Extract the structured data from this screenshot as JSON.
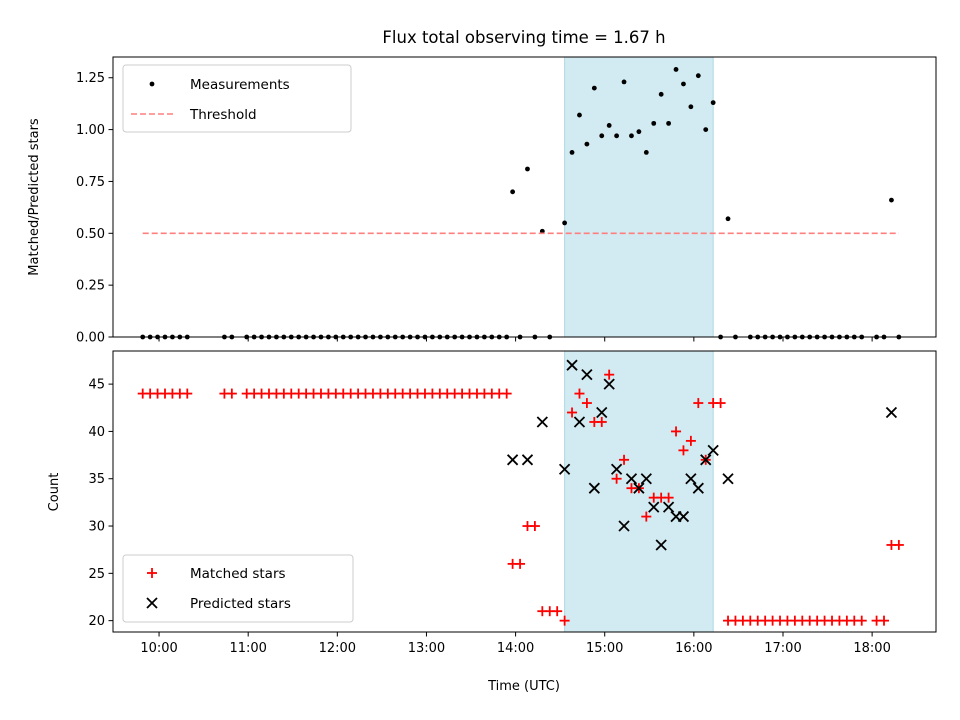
{
  "title": "Flux total observing time = 1.67 h",
  "colors": {
    "measurement": "#000000",
    "threshold": "#ff7f7f",
    "matched": "#ff0000",
    "predicted": "#000000",
    "span": "#add8e6"
  },
  "chart_data": [
    {
      "type": "scatter",
      "panel": "top",
      "ylabel": "Matched/Predicted stars",
      "ylim": [
        0,
        1.35
      ],
      "xlim": [
        "09:29",
        "18:43"
      ],
      "y_ticks": [
        0.0,
        0.25,
        0.5,
        0.75,
        1.0,
        1.25
      ],
      "y_tick_labels": [
        "0.00",
        "0.25",
        "0.50",
        "0.75",
        "1.00",
        "1.25"
      ],
      "x_ticks": [
        "10:00",
        "11:00",
        "12:00",
        "13:00",
        "14:00",
        "15:00",
        "16:00",
        "17:00",
        "18:00"
      ],
      "x_tick_labels": [
        "",
        "",
        "",
        "",
        "",
        "",
        "",
        "",
        ""
      ],
      "highlight_span": [
        "14:33",
        "16:13"
      ],
      "legend": {
        "location": "upper-left",
        "entries": [
          "Measurements",
          "Threshold"
        ]
      },
      "series": [
        {
          "name": "Measurements",
          "marker": "dot",
          "points": [
            [
              "09:49",
              0
            ],
            [
              "09:54",
              0
            ],
            [
              "09:59",
              0
            ],
            [
              "10:04",
              0
            ],
            [
              "10:09",
              0
            ],
            [
              "10:14",
              0
            ],
            [
              "10:19",
              0
            ],
            [
              "10:44",
              0
            ],
            [
              "10:49",
              0
            ],
            [
              "10:59",
              0
            ],
            [
              "11:04",
              0
            ],
            [
              "11:09",
              0
            ],
            [
              "11:14",
              0
            ],
            [
              "11:19",
              0
            ],
            [
              "11:24",
              0
            ],
            [
              "11:29",
              0
            ],
            [
              "11:34",
              0
            ],
            [
              "11:39",
              0
            ],
            [
              "11:44",
              0
            ],
            [
              "11:49",
              0
            ],
            [
              "11:54",
              0
            ],
            [
              "11:59",
              0
            ],
            [
              "12:04",
              0
            ],
            [
              "12:09",
              0
            ],
            [
              "12:14",
              0
            ],
            [
              "12:19",
              0
            ],
            [
              "12:24",
              0
            ],
            [
              "12:29",
              0
            ],
            [
              "12:34",
              0
            ],
            [
              "12:39",
              0
            ],
            [
              "12:44",
              0
            ],
            [
              "12:49",
              0
            ],
            [
              "12:54",
              0
            ],
            [
              "12:59",
              0
            ],
            [
              "13:04",
              0
            ],
            [
              "13:09",
              0
            ],
            [
              "13:14",
              0
            ],
            [
              "13:19",
              0
            ],
            [
              "13:24",
              0
            ],
            [
              "13:29",
              0
            ],
            [
              "13:34",
              0
            ],
            [
              "13:39",
              0
            ],
            [
              "13:44",
              0
            ],
            [
              "13:49",
              0
            ],
            [
              "13:54",
              0
            ],
            [
              "13:58",
              0.7
            ],
            [
              "14:03",
              0
            ],
            [
              "14:08",
              0.81
            ],
            [
              "14:13",
              0
            ],
            [
              "14:18",
              0.51
            ],
            [
              "14:23",
              0
            ],
            [
              "14:33",
              0.55
            ],
            [
              "14:38",
              0.89
            ],
            [
              "14:43",
              1.07
            ],
            [
              "14:48",
              0.93
            ],
            [
              "14:53",
              1.2
            ],
            [
              "14:58",
              0.97
            ],
            [
              "15:03",
              1.02
            ],
            [
              "15:08",
              0.97
            ],
            [
              "15:13",
              1.23
            ],
            [
              "15:18",
              0.97
            ],
            [
              "15:23",
              0.99
            ],
            [
              "15:28",
              0.89
            ],
            [
              "15:33",
              1.03
            ],
            [
              "15:38",
              1.17
            ],
            [
              "15:43",
              1.03
            ],
            [
              "15:48",
              1.29
            ],
            [
              "15:53",
              1.22
            ],
            [
              "15:58",
              1.11
            ],
            [
              "16:03",
              1.26
            ],
            [
              "16:08",
              1.0
            ],
            [
              "16:13",
              1.13
            ],
            [
              "16:18",
              0
            ],
            [
              "16:23",
              0.57
            ],
            [
              "16:28",
              0
            ],
            [
              "16:38",
              0
            ],
            [
              "16:43",
              0
            ],
            [
              "16:48",
              0
            ],
            [
              "16:53",
              0
            ],
            [
              "16:58",
              0
            ],
            [
              "17:03",
              0
            ],
            [
              "17:08",
              0
            ],
            [
              "17:13",
              0
            ],
            [
              "17:18",
              0
            ],
            [
              "17:23",
              0
            ],
            [
              "17:28",
              0
            ],
            [
              "17:33",
              0
            ],
            [
              "17:38",
              0
            ],
            [
              "17:43",
              0
            ],
            [
              "17:48",
              0
            ],
            [
              "17:53",
              0
            ],
            [
              "18:03",
              0
            ],
            [
              "18:08",
              0
            ],
            [
              "18:13",
              0.66
            ],
            [
              "18:18",
              0
            ]
          ]
        },
        {
          "name": "Threshold",
          "style": "dashed-line",
          "points": [
            [
              "09:49",
              0.5
            ],
            [
              "18:18",
              0.5
            ]
          ]
        }
      ]
    },
    {
      "type": "scatter",
      "panel": "bottom",
      "xlabel": "Time (UTC)",
      "ylabel": "Count",
      "ylim": [
        18.8,
        48.5
      ],
      "xlim": [
        "09:29",
        "18:43"
      ],
      "y_ticks": [
        20,
        25,
        30,
        35,
        40,
        45
      ],
      "y_tick_labels": [
        "20",
        "25",
        "30",
        "35",
        "40",
        "45"
      ],
      "x_ticks": [
        "10:00",
        "11:00",
        "12:00",
        "13:00",
        "14:00",
        "15:00",
        "16:00",
        "17:00",
        "18:00"
      ],
      "x_tick_labels": [
        "10:00",
        "11:00",
        "12:00",
        "13:00",
        "14:00",
        "15:00",
        "16:00",
        "17:00",
        "18:00"
      ],
      "highlight_span": [
        "14:33",
        "16:13"
      ],
      "legend": {
        "location": "lower-left",
        "entries": [
          "Matched stars",
          "Predicted stars"
        ]
      },
      "series": [
        {
          "name": "Matched stars",
          "marker": "plus",
          "points": [
            [
              "09:49",
              44
            ],
            [
              "09:54",
              44
            ],
            [
              "09:59",
              44
            ],
            [
              "10:04",
              44
            ],
            [
              "10:09",
              44
            ],
            [
              "10:14",
              44
            ],
            [
              "10:19",
              44
            ],
            [
              "10:44",
              44
            ],
            [
              "10:49",
              44
            ],
            [
              "10:59",
              44
            ],
            [
              "11:04",
              44
            ],
            [
              "11:09",
              44
            ],
            [
              "11:14",
              44
            ],
            [
              "11:19",
              44
            ],
            [
              "11:24",
              44
            ],
            [
              "11:29",
              44
            ],
            [
              "11:34",
              44
            ],
            [
              "11:39",
              44
            ],
            [
              "11:44",
              44
            ],
            [
              "11:49",
              44
            ],
            [
              "11:54",
              44
            ],
            [
              "11:59",
              44
            ],
            [
              "12:04",
              44
            ],
            [
              "12:09",
              44
            ],
            [
              "12:14",
              44
            ],
            [
              "12:19",
              44
            ],
            [
              "12:24",
              44
            ],
            [
              "12:29",
              44
            ],
            [
              "12:34",
              44
            ],
            [
              "12:39",
              44
            ],
            [
              "12:44",
              44
            ],
            [
              "12:49",
              44
            ],
            [
              "12:54",
              44
            ],
            [
              "12:59",
              44
            ],
            [
              "13:04",
              44
            ],
            [
              "13:09",
              44
            ],
            [
              "13:14",
              44
            ],
            [
              "13:19",
              44
            ],
            [
              "13:24",
              44
            ],
            [
              "13:29",
              44
            ],
            [
              "13:34",
              44
            ],
            [
              "13:39",
              44
            ],
            [
              "13:44",
              44
            ],
            [
              "13:49",
              44
            ],
            [
              "13:54",
              44
            ],
            [
              "13:58",
              26
            ],
            [
              "14:03",
              26
            ],
            [
              "14:08",
              30
            ],
            [
              "14:13",
              30
            ],
            [
              "14:18",
              21
            ],
            [
              "14:23",
              21
            ],
            [
              "14:28",
              21
            ],
            [
              "14:33",
              20
            ],
            [
              "14:38",
              42
            ],
            [
              "14:43",
              44
            ],
            [
              "14:48",
              43
            ],
            [
              "14:53",
              41
            ],
            [
              "14:58",
              41
            ],
            [
              "15:03",
              46
            ],
            [
              "15:08",
              35
            ],
            [
              "15:13",
              37
            ],
            [
              "15:18",
              34
            ],
            [
              "15:23",
              34
            ],
            [
              "15:28",
              31
            ],
            [
              "15:33",
              33
            ],
            [
              "15:38",
              33
            ],
            [
              "15:43",
              33
            ],
            [
              "15:48",
              40
            ],
            [
              "15:53",
              38
            ],
            [
              "15:58",
              39
            ],
            [
              "16:03",
              43
            ],
            [
              "16:08",
              37
            ],
            [
              "16:13",
              43
            ],
            [
              "16:18",
              43
            ],
            [
              "16:23",
              20
            ],
            [
              "16:28",
              20
            ],
            [
              "16:33",
              20
            ],
            [
              "16:38",
              20
            ],
            [
              "16:43",
              20
            ],
            [
              "16:48",
              20
            ],
            [
              "16:53",
              20
            ],
            [
              "16:58",
              20
            ],
            [
              "17:03",
              20
            ],
            [
              "17:08",
              20
            ],
            [
              "17:13",
              20
            ],
            [
              "17:18",
              20
            ],
            [
              "17:23",
              20
            ],
            [
              "17:28",
              20
            ],
            [
              "17:33",
              20
            ],
            [
              "17:38",
              20
            ],
            [
              "17:43",
              20
            ],
            [
              "17:48",
              20
            ],
            [
              "17:53",
              20
            ],
            [
              "18:03",
              20
            ],
            [
              "18:08",
              20
            ],
            [
              "18:13",
              28
            ],
            [
              "18:18",
              28
            ]
          ]
        },
        {
          "name": "Predicted stars",
          "marker": "x",
          "points": [
            [
              "13:58",
              37
            ],
            [
              "14:08",
              37
            ],
            [
              "14:18",
              41
            ],
            [
              "14:33",
              36
            ],
            [
              "14:38",
              47
            ],
            [
              "14:43",
              41
            ],
            [
              "14:48",
              46
            ],
            [
              "14:53",
              34
            ],
            [
              "14:58",
              42
            ],
            [
              "15:03",
              45
            ],
            [
              "15:08",
              36
            ],
            [
              "15:13",
              30
            ],
            [
              "15:18",
              35
            ],
            [
              "15:23",
              34
            ],
            [
              "15:28",
              35
            ],
            [
              "15:33",
              32
            ],
            [
              "15:38",
              28
            ],
            [
              "15:43",
              32
            ],
            [
              "15:48",
              31
            ],
            [
              "15:53",
              31
            ],
            [
              "15:58",
              35
            ],
            [
              "16:03",
              34
            ],
            [
              "16:08",
              37
            ],
            [
              "16:13",
              38
            ],
            [
              "16:23",
              35
            ],
            [
              "18:13",
              42
            ]
          ]
        }
      ]
    }
  ]
}
